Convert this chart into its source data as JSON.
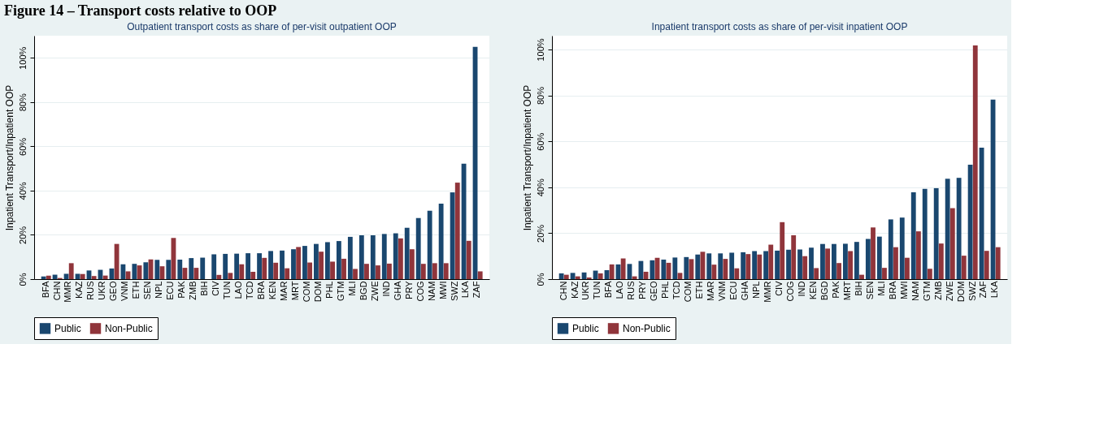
{
  "chart_data": [
    {
      "type": "bar",
      "title": "Outpatient transport costs as share of per-visit outpatient OOP",
      "ylabel": "Inpatient Transport/Inpatient OOP",
      "annotations": [
        "Figure 14 – Transport costs relative to OOP"
      ],
      "categories": [
        "BFA",
        "CHN",
        "MMR",
        "KAZ",
        "RUS",
        "UKR",
        "GEO",
        "VNM",
        "ETH",
        "SEN",
        "NPL",
        "ECU",
        "PAK",
        "ZMB",
        "BIH",
        "CIV",
        "TUN",
        "LAO",
        "TCD",
        "BRA",
        "KEN",
        "MAR",
        "MRT",
        "COM",
        "DOM",
        "PHL",
        "GTM",
        "MLI",
        "BGD",
        "ZWE",
        "IND",
        "GHA",
        "PRY",
        "COG",
        "NAM",
        "MWI",
        "SWZ",
        "LKA",
        "ZAF"
      ],
      "series": [
        {
          "name": "Public",
          "color": "#1a476f",
          "values": [
            1.2,
            2.0,
            2.4,
            2.4,
            3.9,
            4.2,
            4.8,
            6.7,
            6.9,
            7.6,
            8.7,
            8.7,
            8.8,
            9.5,
            9.7,
            11.2,
            11.4,
            11.5,
            11.7,
            11.7,
            12.7,
            12.9,
            13.5,
            15.0,
            15.9,
            16.7,
            17.2,
            19.1,
            19.8,
            19.8,
            20.4,
            20.7,
            23.2,
            27.6,
            30.9,
            34.1,
            39.2,
            52.2,
            105.0
          ]
        },
        {
          "name": "Non-Public",
          "color": "#90353b",
          "values": [
            1.6,
            0.5,
            7.2,
            2.3,
            1.4,
            1.6,
            15.9,
            3.5,
            6.2,
            8.9,
            5.8,
            18.6,
            5.1,
            5.1,
            null,
            1.9,
            2.8,
            6.7,
            3.3,
            9.6,
            7.4,
            4.9,
            14.5,
            7.5,
            12.4,
            7.9,
            9.2,
            4.6,
            6.9,
            6.2,
            7.0,
            18.4,
            13.5,
            6.9,
            7.2,
            7.2,
            43.6,
            17.3,
            3.5
          ]
        }
      ],
      "ylim": [
        0,
        110
      ],
      "yticks": [
        {
          "value": 0,
          "label": "0%"
        },
        {
          "value": 20,
          "label": "20%"
        },
        {
          "value": 40,
          "label": "40%"
        },
        {
          "value": 60,
          "label": "60%"
        },
        {
          "value": 80,
          "label": "80%"
        },
        {
          "value": 100,
          "label": "100%"
        }
      ],
      "grid": "y",
      "legend": "bottom"
    },
    {
      "type": "bar",
      "title": "Inpatient transport costs as share of per-visit inpatient OOP",
      "ylabel": "Inpatient Transport/Inpatient OOP",
      "categories": [
        "CHN",
        "KAZ",
        "UKR",
        "TUN",
        "BFA",
        "LAO",
        "RUS",
        "PRY",
        "GEO",
        "PHL",
        "TCD",
        "COM",
        "ETH",
        "MAR",
        "VNM",
        "ECU",
        "GHA",
        "NPL",
        "MMR",
        "CIV",
        "COG",
        "IND",
        "KEN",
        "BGD",
        "PAK",
        "MRT",
        "BIH",
        "SEN",
        "MLI",
        "BRA",
        "MWI",
        "NAM",
        "GTM",
        "ZMB",
        "ZWE",
        "DOM",
        "SWZ",
        "ZAF",
        "LKA"
      ],
      "series": [
        {
          "name": "Public",
          "color": "#1a476f",
          "values": [
            2.5,
            2.7,
            2.9,
            3.7,
            3.9,
            6.4,
            6.6,
            7.9,
            8.2,
            8.5,
            9.4,
            9.6,
            10.7,
            11.2,
            11.2,
            11.5,
            11.7,
            12.2,
            12.2,
            12.4,
            12.8,
            12.9,
            13.7,
            15.3,
            15.3,
            15.4,
            16.2,
            17.5,
            18.5,
            26.0,
            26.8,
            37.8,
            39.3,
            39.6,
            43.7,
            44.1,
            49.8,
            57.2,
            78.2
          ]
        },
        {
          "name": "Non-Public",
          "color": "#90353b",
          "values": [
            1.9,
            1.2,
            0.7,
            2.5,
            6.4,
            9.0,
            1.2,
            3.2,
            9.3,
            7.1,
            2.7,
            8.7,
            11.9,
            6.3,
            8.8,
            4.7,
            10.9,
            10.7,
            15.0,
            24.8,
            19.1,
            10.0,
            4.8,
            13.3,
            7.0,
            12.2,
            1.9,
            22.5,
            4.9,
            13.9,
            9.3,
            20.8,
            4.5,
            15.5,
            30.9,
            10.2,
            101.8,
            12.3,
            13.9
          ]
        }
      ],
      "ylim": [
        0,
        106
      ],
      "yticks": [
        {
          "value": 0,
          "label": "0%"
        },
        {
          "value": 20,
          "label": "20%"
        },
        {
          "value": 40,
          "label": "40%"
        },
        {
          "value": 60,
          "label": "60%"
        },
        {
          "value": 80,
          "label": "80%"
        },
        {
          "value": 100,
          "label": "100%"
        }
      ],
      "grid": "y",
      "legend": "bottom"
    }
  ]
}
